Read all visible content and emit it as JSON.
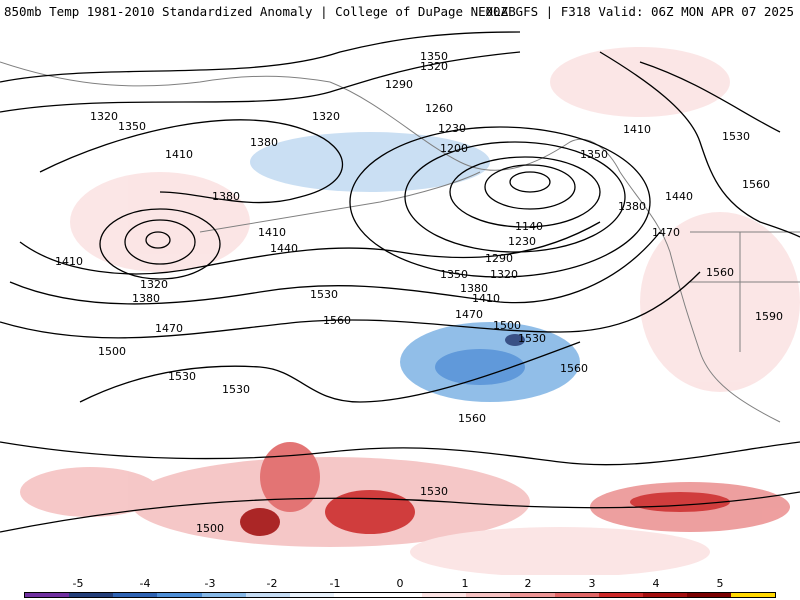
{
  "header": {
    "left": "850mb Temp 1981-2010 Standardized Anomaly | College of DuPage NEXLAB",
    "right": "00Z GFS | F318 Valid: 06Z MON APR 07 2025"
  },
  "colorbar": {
    "ticks": [
      "-5",
      "-4",
      "-3",
      "-2",
      "-1",
      "0",
      "1",
      "2",
      "3",
      "4",
      "5"
    ],
    "colors": [
      "#7030a0",
      "#243f7a",
      "#2e63b3",
      "#4f8fd6",
      "#86b8e6",
      "#c4dbf2",
      "#e8f1fa",
      "#ffffff",
      "#ffffff",
      "#fbe3e3",
      "#f5c2c2",
      "#ec9595",
      "#e06666",
      "#cc2929",
      "#a30f0f",
      "#7a0000",
      "#ffd700"
    ]
  },
  "contours": {
    "labels": [
      "1350",
      "1320",
      "1290",
      "1260",
      "1230",
      "1200",
      "1140",
      "1230",
      "1290",
      "1320",
      "1350",
      "1380",
      "1410",
      "1470",
      "1500",
      "1530",
      "1560",
      "1320",
      "1350",
      "1410",
      "1380",
      "1380",
      "1410",
      "1320",
      "1380",
      "1440",
      "1470",
      "1500",
      "1530",
      "1530",
      "1560",
      "1560",
      "1530",
      "1500",
      "1530",
      "1410",
      "1440",
      "1470",
      "1530",
      "1560",
      "1590",
      "1560",
      "1350",
      "1380",
      "1320",
      "1410"
    ]
  },
  "map_colors": {
    "land_outline": "#808080",
    "contour": "#000000",
    "cold": "#2e63b3",
    "warm": "#cc2929"
  }
}
